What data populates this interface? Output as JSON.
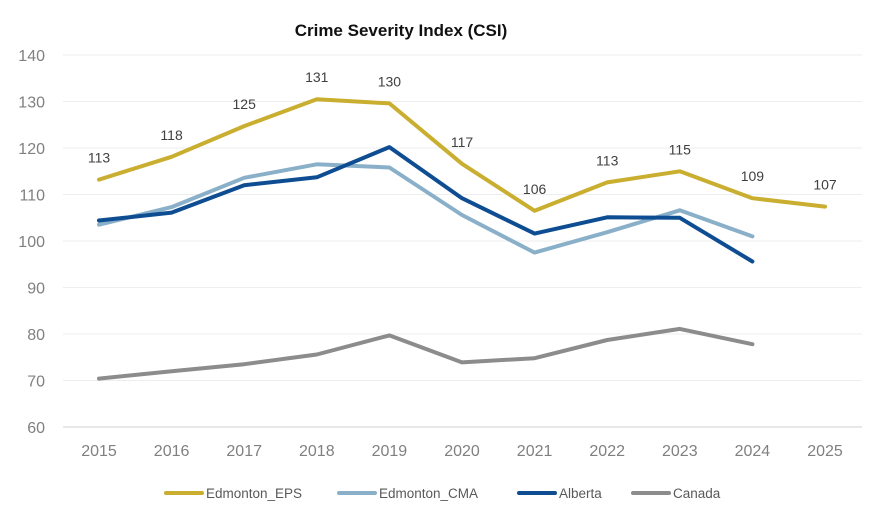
{
  "chart_data": {
    "type": "line",
    "title": "Crime Severity Index (CSI)",
    "xlabel": "",
    "ylabel": "",
    "ylim": [
      60,
      140
    ],
    "yticks": [
      "60",
      "70",
      "80",
      "90",
      "100",
      "110",
      "120",
      "130",
      "140"
    ],
    "categories": [
      "2015",
      "2016",
      "2017",
      "2018",
      "2019",
      "2020",
      "2021",
      "2022",
      "2023",
      "2024",
      "2025"
    ],
    "grid": true,
    "legend_position": "bottom",
    "series": [
      {
        "name": "Edmonton_EPS",
        "color": "#C9AE2F",
        "values": [
          113.2,
          118.1,
          124.7,
          130.5,
          129.6,
          116.6,
          106.5,
          112.6,
          115.0,
          109.2,
          107.4
        ],
        "data_labels": [
          "113",
          "118",
          "125",
          "131",
          "130",
          "117",
          "106",
          "113",
          "115",
          "109",
          "107"
        ]
      },
      {
        "name": "Edmonton_CMA",
        "color": "#8AB0C9",
        "values": [
          103.5,
          107.3,
          113.6,
          116.5,
          115.8,
          105.6,
          97.5,
          101.9,
          106.6,
          101.0,
          null
        ]
      },
      {
        "name": "Alberta",
        "color": "#0E4D92",
        "values": [
          104.4,
          106.1,
          112.0,
          113.7,
          120.2,
          109.2,
          101.6,
          105.1,
          105.0,
          95.6,
          null
        ]
      },
      {
        "name": "Canada",
        "color": "#8C8C8C",
        "values": [
          70.4,
          72.0,
          73.5,
          75.6,
          79.7,
          73.9,
          74.8,
          78.7,
          81.1,
          77.8,
          null
        ]
      }
    ]
  }
}
